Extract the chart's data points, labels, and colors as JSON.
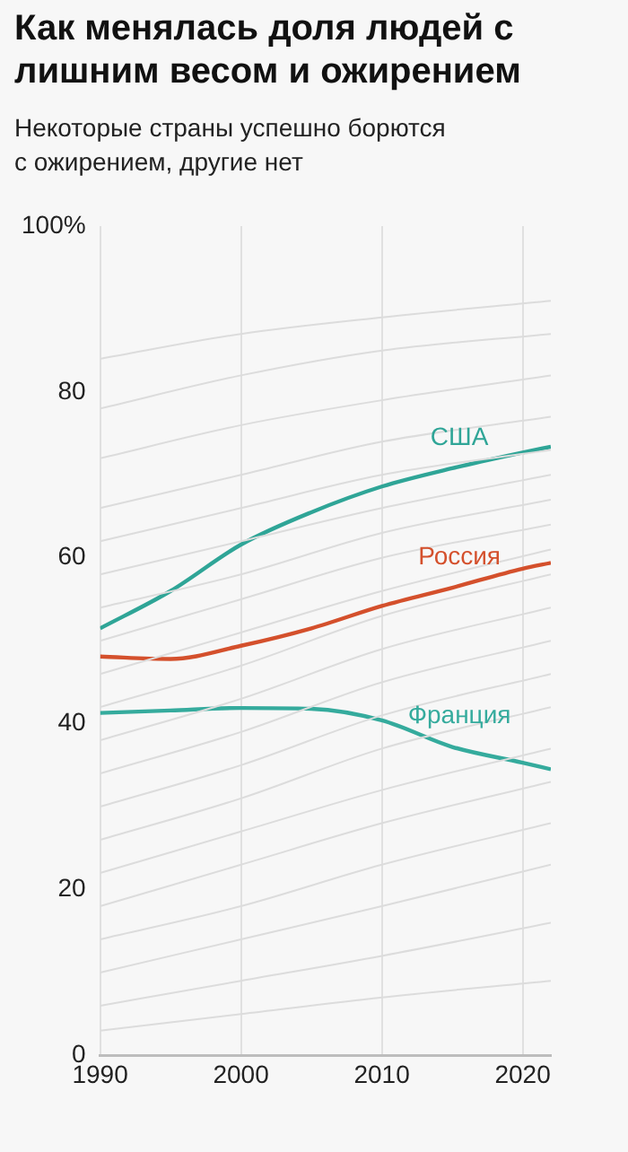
{
  "chart_data": {
    "type": "line",
    "title": "Как менялась доля людей с лишним весом и ожирением",
    "subtitle": "Некоторые страны успешно борются с ожирением, другие нет",
    "xlim": [
      1990,
      2022
    ],
    "xticks": [
      1990,
      2000,
      2010,
      2020
    ],
    "ylim": [
      0,
      100
    ],
    "yticks": [
      0,
      20,
      40,
      60,
      80,
      {
        "value": 100,
        "label": "100%"
      }
    ],
    "grid": "x",
    "marker": "none",
    "line_style": "solid",
    "series": [
      {
        "color": "#dcdcdc",
        "x": [
          1990,
          2000,
          2010,
          2022
        ],
        "values": [
          3,
          5,
          7,
          9
        ]
      },
      {
        "color": "#dcdcdc",
        "x": [
          1990,
          2000,
          2010,
          2022
        ],
        "values": [
          6,
          9,
          12,
          16
        ]
      },
      {
        "color": "#dcdcdc",
        "x": [
          1990,
          2000,
          2010,
          2022
        ],
        "values": [
          10,
          14,
          18,
          23
        ]
      },
      {
        "color": "#dcdcdc",
        "x": [
          1990,
          2000,
          2010,
          2022
        ],
        "values": [
          14,
          18,
          23,
          28
        ]
      },
      {
        "color": "#dcdcdc",
        "x": [
          1990,
          2000,
          2010,
          2022
        ],
        "values": [
          18,
          23,
          28,
          33
        ]
      },
      {
        "color": "#dcdcdc",
        "x": [
          1990,
          2000,
          2010,
          2022
        ],
        "values": [
          22,
          27,
          32,
          37
        ]
      },
      {
        "color": "#dcdcdc",
        "x": [
          1990,
          2000,
          2010,
          2022
        ],
        "values": [
          26,
          31,
          37,
          42
        ]
      },
      {
        "color": "#dcdcdc",
        "x": [
          1990,
          2000,
          2010,
          2022
        ],
        "values": [
          30,
          35,
          41,
          46
        ]
      },
      {
        "color": "#dcdcdc",
        "x": [
          1990,
          2000,
          2010,
          2022
        ],
        "values": [
          34,
          39,
          45,
          50
        ]
      },
      {
        "color": "#dcdcdc",
        "x": [
          1990,
          2000,
          2010,
          2022
        ],
        "values": [
          38,
          43,
          49,
          54
        ]
      },
      {
        "color": "#dcdcdc",
        "x": [
          1990,
          2000,
          2010,
          2022
        ],
        "values": [
          42,
          47,
          53,
          58
        ]
      },
      {
        "color": "#dcdcdc",
        "x": [
          1990,
          2000,
          2010,
          2022
        ],
        "values": [
          46,
          51,
          56,
          61
        ]
      },
      {
        "color": "#dcdcdc",
        "x": [
          1990,
          2000,
          2010,
          2022
        ],
        "values": [
          50,
          55,
          60,
          64
        ]
      },
      {
        "color": "#dcdcdc",
        "x": [
          1990,
          2000,
          2010,
          2022
        ],
        "values": [
          54,
          58,
          63,
          67
        ]
      },
      {
        "color": "#dcdcdc",
        "x": [
          1990,
          2000,
          2010,
          2022
        ],
        "values": [
          58,
          62,
          66,
          70
        ]
      },
      {
        "color": "#dcdcdc",
        "x": [
          1990,
          2000,
          2010,
          2022
        ],
        "values": [
          62,
          66,
          70,
          73
        ]
      },
      {
        "color": "#dcdcdc",
        "x": [
          1990,
          2000,
          2010,
          2022
        ],
        "values": [
          66,
          70,
          74,
          77
        ]
      },
      {
        "color": "#dcdcdc",
        "x": [
          1990,
          2000,
          2010,
          2022
        ],
        "values": [
          72,
          76,
          79,
          82
        ]
      },
      {
        "color": "#dcdcdc",
        "x": [
          1990,
          2000,
          2010,
          2022
        ],
        "values": [
          78,
          82,
          85,
          87
        ]
      },
      {
        "color": "#dcdcdc",
        "x": [
          1990,
          2000,
          2010,
          2022
        ],
        "values": [
          84,
          87,
          89,
          91
        ]
      },
      {
        "name": "США",
        "color": "#2fa597",
        "x": [
          1990,
          1995,
          2000,
          2005,
          2010,
          2015,
          2020,
          2022
        ],
        "values": [
          51.5,
          56,
          61.6,
          65.5,
          68.6,
          70.8,
          72.7,
          73.4
        ]
      },
      {
        "name": "Россия",
        "color": "#d4502c",
        "x": [
          1990,
          1995,
          2000,
          2005,
          2010,
          2015,
          2020,
          2022
        ],
        "values": [
          48.1,
          47.8,
          49.4,
          51.5,
          54.2,
          56.4,
          58.7,
          59.4
        ]
      },
      {
        "name": "Франция",
        "color": "#35ab9d",
        "x": [
          1990,
          1995,
          2000,
          2005,
          2010,
          2015,
          2020,
          2022
        ],
        "values": [
          41.3,
          41.6,
          41.9,
          41.8,
          40.4,
          37.2,
          35.3,
          34.5
        ]
      }
    ]
  }
}
